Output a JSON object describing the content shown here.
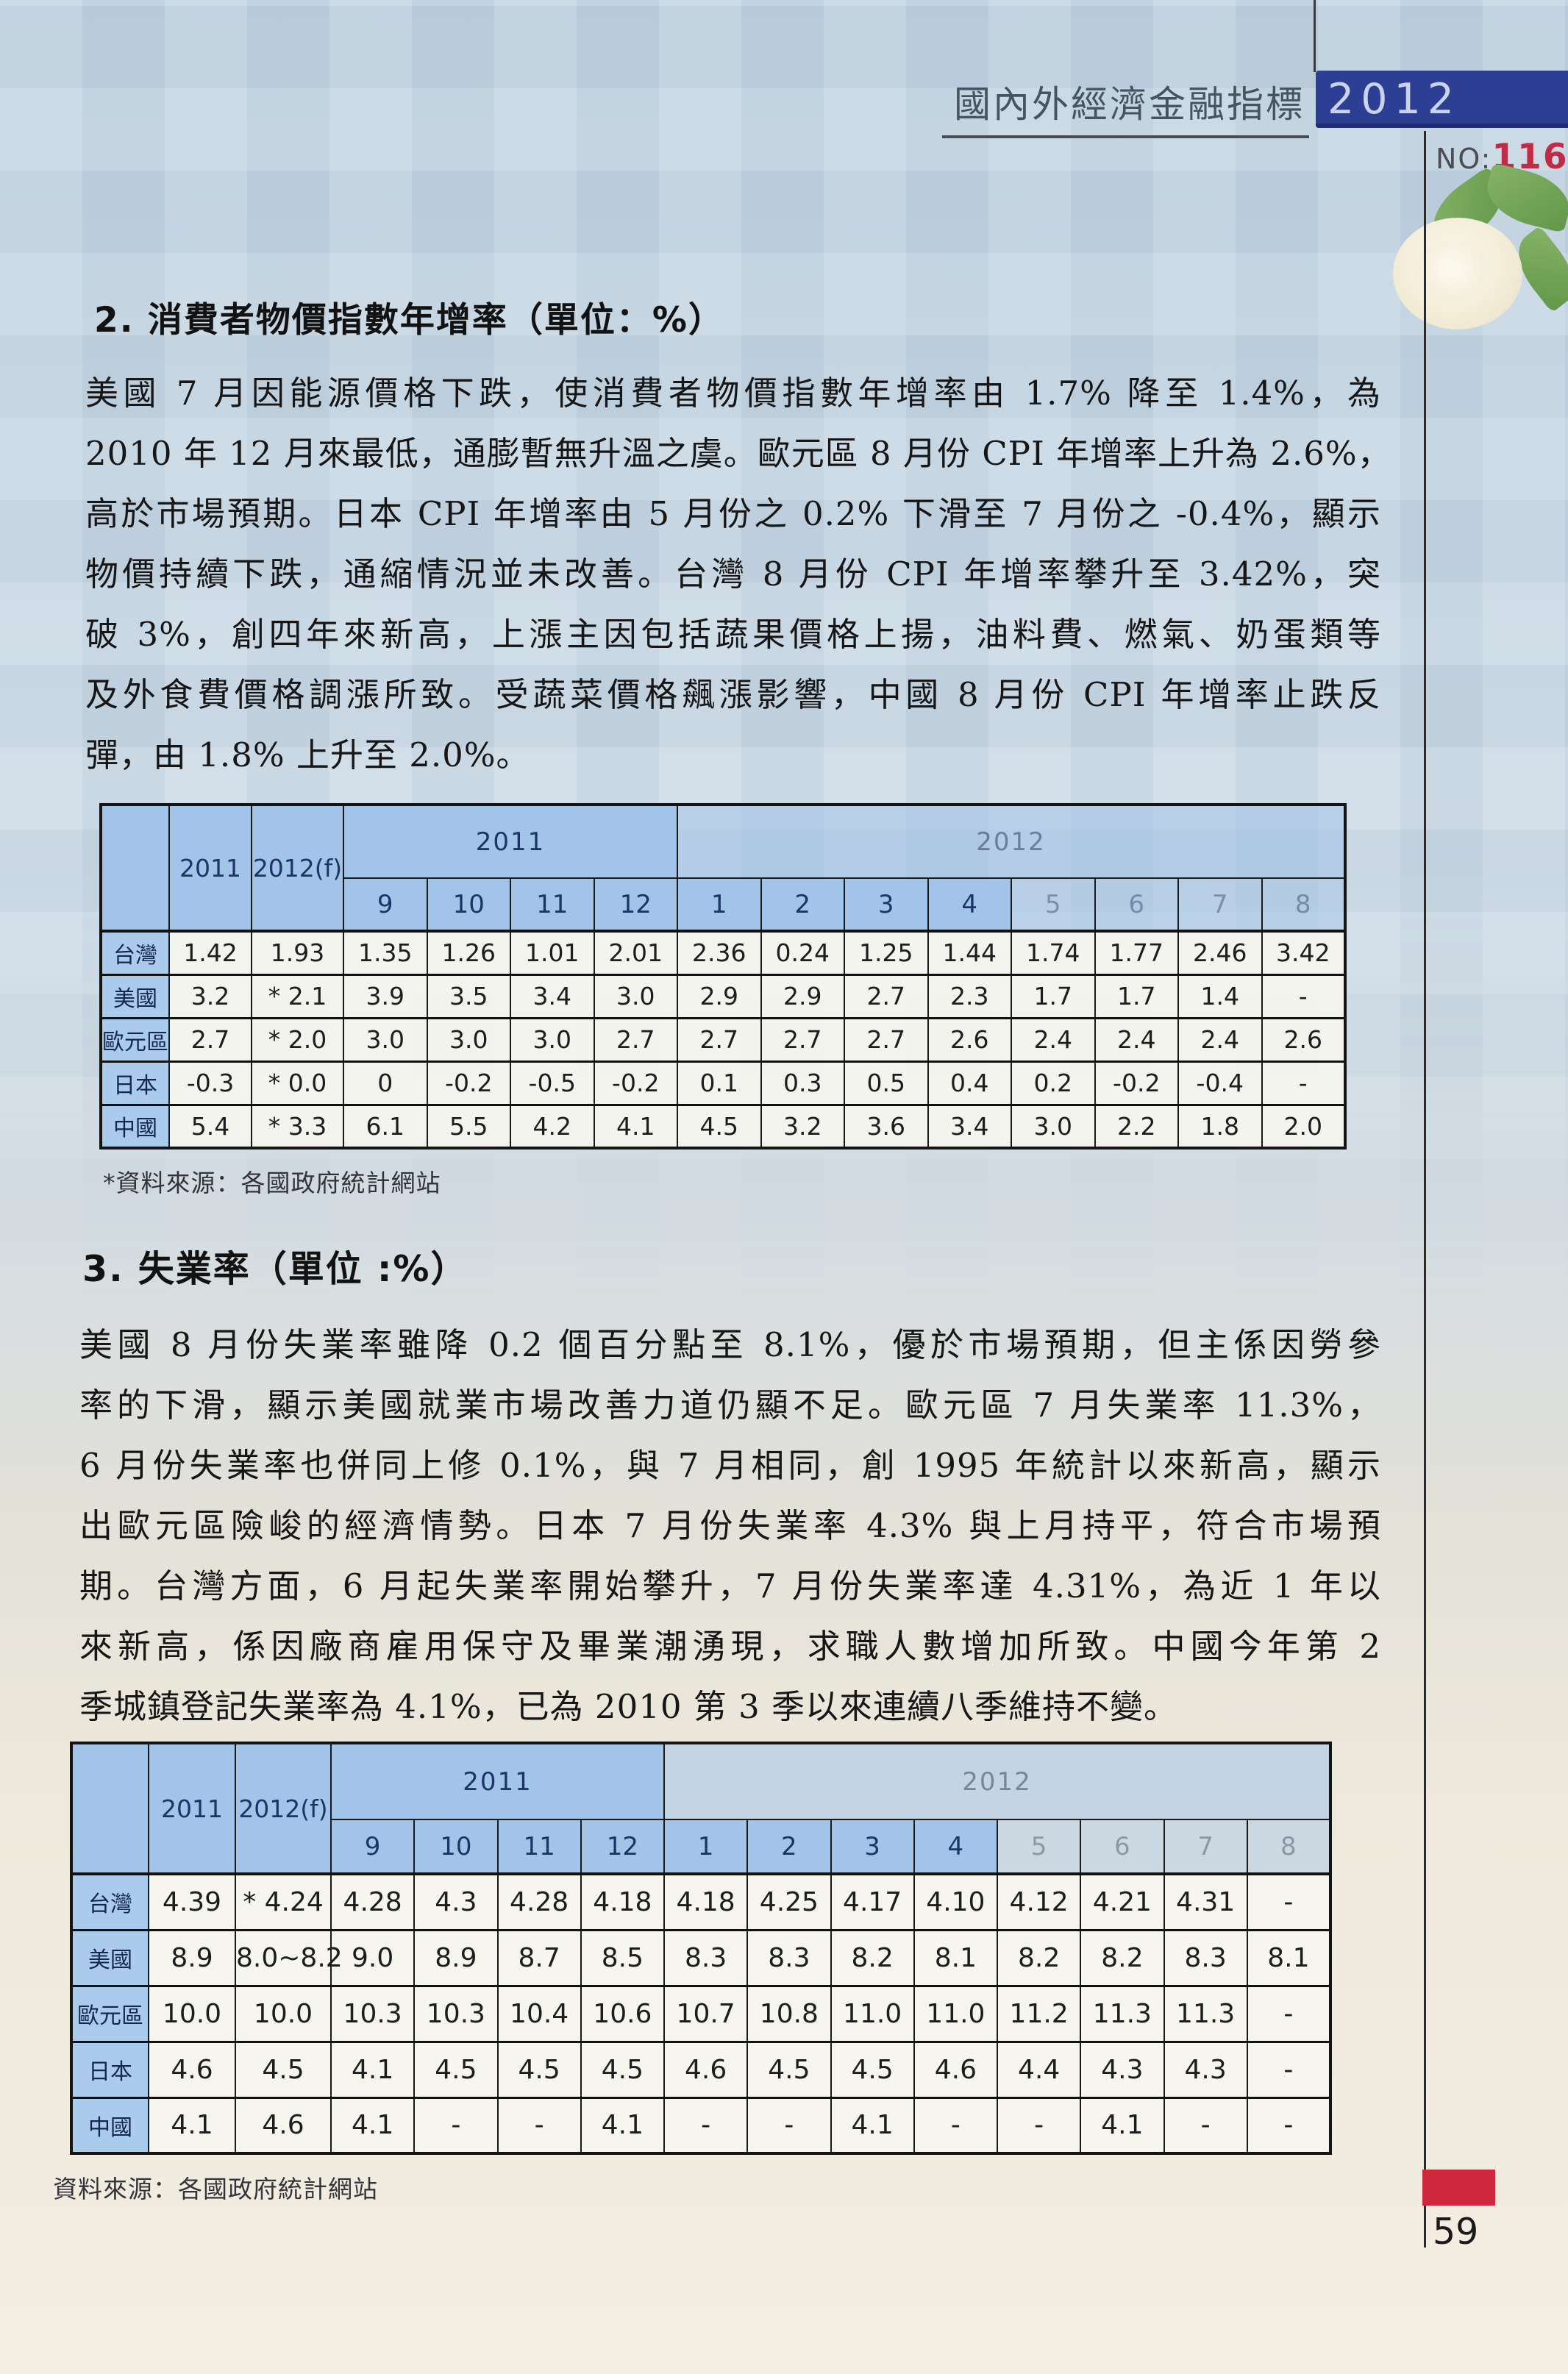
{
  "header": {
    "title": "國內外經濟金融指標",
    "year_badge": "2012",
    "no_label": "NO:",
    "no_value": "116",
    "rose_icon": "white-rose-with-leaves"
  },
  "section_cpi": {
    "heading": "2. 消費者物價指數年增率（單位：%）",
    "lines": [
      "美國 7 月因能源價格下跌，使消費者物價指數年增率由 1.7% 降至 1.4%，為",
      "2010 年 12 月來最低，通膨暫無升溫之虞。歐元區 8 月份 CPI 年增率上升為 2.6%，",
      "高於市場預期。日本 CPI 年增率由 5 月份之 0.2% 下滑至 7 月份之 -0.4%，顯示",
      "物價持續下跌，通縮情況並未改善。台灣 8 月份 CPI 年增率攀升至 3.42%，突",
      "破 3%，創四年來新高，上漲主因包括蔬果價格上揚，油料費、燃氣、奶蛋類等",
      "及外食費價格調漲所致。受蔬菜價格飆漲影響，中國 8 月份 CPI 年增率止跌反",
      "彈，由 1.8% 上升至 2.0%。"
    ]
  },
  "cpi_table": {
    "left_headers": [
      "2011",
      "2012(f)"
    ],
    "groups": [
      {
        "label": "2011",
        "months": [
          "9",
          "10",
          "11",
          "12"
        ]
      },
      {
        "label": "2012",
        "months": [
          "1",
          "2",
          "3",
          "4",
          "5",
          "6",
          "7",
          "8"
        ]
      }
    ],
    "rows": [
      {
        "label": "台灣",
        "annual": "1.42",
        "forecast": "1.93",
        "values": [
          "1.35",
          "1.26",
          "1.01",
          "2.01",
          "2.36",
          "0.24",
          "1.25",
          "1.44",
          "1.74",
          "1.77",
          "2.46",
          "3.42"
        ]
      },
      {
        "label": "美國",
        "annual": "3.2",
        "forecast": "* 2.1",
        "values": [
          "3.9",
          "3.5",
          "3.4",
          "3.0",
          "2.9",
          "2.9",
          "2.7",
          "2.3",
          "1.7",
          "1.7",
          "1.4",
          "-"
        ]
      },
      {
        "label": "歐元區",
        "annual": "2.7",
        "forecast": "* 2.0",
        "values": [
          "3.0",
          "3.0",
          "3.0",
          "2.7",
          "2.7",
          "2.7",
          "2.7",
          "2.6",
          "2.4",
          "2.4",
          "2.4",
          "2.6"
        ]
      },
      {
        "label": "日本",
        "annual": "-0.3",
        "forecast": "* 0.0",
        "values": [
          "0",
          "-0.2",
          "-0.5",
          "-0.2",
          "0.1",
          "0.3",
          "0.5",
          "0.4",
          "0.2",
          "-0.2",
          "-0.4",
          "-"
        ]
      },
      {
        "label": "中國",
        "annual": "5.4",
        "forecast": "* 3.3",
        "values": [
          "6.1",
          "5.5",
          "4.2",
          "4.1",
          "4.5",
          "3.2",
          "3.6",
          "3.4",
          "3.0",
          "2.2",
          "1.8",
          "2.0"
        ]
      }
    ],
    "footnote": "*資料來源：各國政府統計網站"
  },
  "section_unemployment": {
    "heading": "3. 失業率（單位 :%）",
    "lines": [
      "美國 8 月份失業率雖降 0.2  個百分點至 8.1%，優於市場預期，但主係因勞參",
      "率的下滑，顯示美國就業市場改善力道仍顯不足。歐元區 7 月失業率 11.3%，",
      "6 月份失業率也併同上修 0.1%，與 7 月相同，創 1995 年統計以來新高，顯示",
      "出歐元區險峻的經濟情勢。日本 7 月份失業率 4.3% 與上月持平，符合市場預",
      "期。台灣方面，6 月起失業率開始攀升，7 月份失業率達 4.31%，為近 1 年以",
      "來新高，係因廠商雇用保守及畢業潮湧現，求職人數增加所致。中國今年第 2",
      "季城鎮登記失業率為 4.1%，已為 2010 第 3 季以來連續八季維持不變。"
    ]
  },
  "unemployment_table": {
    "left_headers": [
      "2011",
      "2012(f)"
    ],
    "groups": [
      {
        "label": "2011",
        "months": [
          "9",
          "10",
          "11",
          "12"
        ]
      },
      {
        "label": "2012",
        "months": [
          "1",
          "2",
          "3",
          "4",
          "5",
          "6",
          "7",
          "8"
        ]
      }
    ],
    "rows": [
      {
        "label": "台灣",
        "annual": "4.39",
        "forecast": "* 4.24",
        "values": [
          "4.28",
          "4.3",
          "4.28",
          "4.18",
          "4.18",
          "4.25",
          "4.17",
          "4.10",
          "4.12",
          "4.21",
          "4.31",
          "-"
        ]
      },
      {
        "label": "美國",
        "annual": "8.9",
        "forecast": "8.0~8.2",
        "values": [
          "9.0",
          "8.9",
          "8.7",
          "8.5",
          "8.3",
          "8.3",
          "8.2",
          "8.1",
          "8.2",
          "8.2",
          "8.3",
          "8.1"
        ]
      },
      {
        "label": "歐元區",
        "annual": "10.0",
        "forecast": "10.0",
        "values": [
          "10.3",
          "10.3",
          "10.4",
          "10.6",
          "10.7",
          "10.8",
          "11.0",
          "11.0",
          "11.2",
          "11.3",
          "11.3",
          "-"
        ]
      },
      {
        "label": "日本",
        "annual": "4.6",
        "forecast": "4.5",
        "values": [
          "4.1",
          "4.5",
          "4.5",
          "4.5",
          "4.6",
          "4.5",
          "4.5",
          "4.6",
          "4.4",
          "4.3",
          "4.3",
          "-"
        ]
      },
      {
        "label": "中國",
        "annual": "4.1",
        "forecast": "4.6",
        "values": [
          "4.1",
          "-",
          "-",
          "4.1",
          "-",
          "-",
          "4.1",
          "-",
          "-",
          "4.1",
          "-",
          "-"
        ]
      }
    ],
    "footnote": "資料來源：各國政府統計網站"
  },
  "footer": {
    "page_number": "59"
  },
  "colors": {
    "year_badge_bg": "#2c3f92",
    "no_value_red": "#c22b45",
    "table_header_blue": "#a2c4e8",
    "row_label_blue": "#abcbec",
    "red_mark": "#d0273c"
  }
}
